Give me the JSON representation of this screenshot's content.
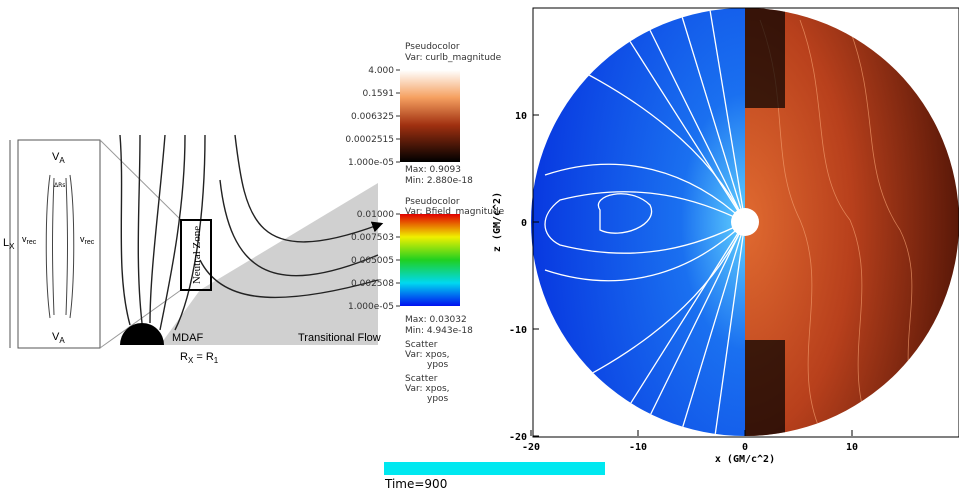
{
  "schematic": {
    "va_top": {
      "main": "V",
      "sub": "A"
    },
    "va_bottom": {
      "main": "V",
      "sub": "A"
    },
    "delta": "ΔRs",
    "vrec_left": {
      "main": "v",
      "sub": "rec"
    },
    "vrec_right": {
      "main": "v",
      "sub": "rec"
    },
    "lx": {
      "main": "L",
      "sub": "X"
    },
    "neutral_zone": "Neutral Zone",
    "mdaf": "MDAF",
    "transitional_flow": "Transitional Flow",
    "rx": {
      "main": "R",
      "sub": "X",
      "rest": " = R",
      "sub2": "1"
    }
  },
  "legend": {
    "curlb": {
      "title": "Pseudocolor",
      "var": "Var: curlb_magnitude",
      "ticks": [
        "4.000",
        "0.1591",
        "0.006325",
        "0.0002515",
        "1.000e-05"
      ],
      "max": "Max: 0.9093",
      "min": "Min: 2.880e-18"
    },
    "bfield": {
      "title": "Pseudocolor",
      "var": "Var: Bfield_magnitude",
      "ticks": [
        "0.01000",
        "0.007503",
        "0.005005",
        "0.002508",
        "1.000e-05"
      ],
      "max": "Max: 0.03032",
      "min": "Min: 4.943e-18"
    },
    "scatter1": {
      "title": "Scatter",
      "var": "Var: xpos,",
      "var2": "ypos"
    },
    "scatter2": {
      "title": "Scatter",
      "var": "Var: xpos,",
      "var2": "ypos"
    }
  },
  "plot": {
    "xlabel": "x (GM/c^2)",
    "ylabel": "z (GM/c^2)",
    "xlim": [
      -20,
      20
    ],
    "ylim": [
      -20,
      20
    ],
    "xticks": [
      -20,
      -10,
      0,
      10
    ],
    "yticks": [
      -20,
      -10,
      0,
      10
    ]
  },
  "time": "Time=900"
}
